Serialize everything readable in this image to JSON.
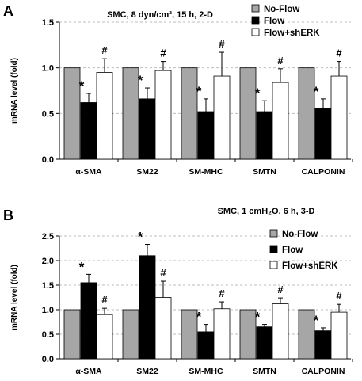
{
  "chart_data": [
    {
      "panel": "A",
      "type": "bar",
      "title": "SMC, 8 dyn/cm², 15 h, 2-D",
      "ylabel": "mRNA level (fold)",
      "xlabel": "",
      "ylim": [
        0,
        1.5
      ],
      "yticks": [
        "0.0",
        "0.5",
        "1.0",
        "1.5"
      ],
      "grid": true,
      "legend": "top-right",
      "categories": [
        "α-SMA",
        "SM22",
        "SM-MHC",
        "SMTN",
        "CALPONIN"
      ],
      "series": [
        {
          "name": "No-Flow",
          "color": "#a6a6a6",
          "values": [
            1.0,
            1.0,
            1.0,
            1.0,
            1.0
          ],
          "errors": [
            0,
            0,
            0,
            0,
            0
          ],
          "marks": [
            "",
            "",
            "",
            "",
            ""
          ]
        },
        {
          "name": "Flow",
          "color": "#000000",
          "values": [
            0.62,
            0.66,
            0.52,
            0.52,
            0.56
          ],
          "errors": [
            0.1,
            0.12,
            0.14,
            0.12,
            0.1
          ],
          "marks": [
            "*",
            "*",
            "*",
            "*",
            "*"
          ]
        },
        {
          "name": "Flow+shERK",
          "color": "#ffffff",
          "values": [
            0.95,
            0.97,
            0.91,
            0.84,
            0.91
          ],
          "errors": [
            0.15,
            0.1,
            0.26,
            0.15,
            0.16
          ],
          "marks": [
            "#",
            "#",
            "#",
            "#",
            "#"
          ]
        }
      ]
    },
    {
      "panel": "B",
      "type": "bar",
      "title": "SMC, 1 cmH₂O, 6 h, 3-D",
      "ylabel": "mRNA level (fold)",
      "xlabel": "",
      "ylim": [
        0,
        2.5
      ],
      "yticks": [
        "0.0",
        "0.5",
        "1.0",
        "1.5",
        "2.0",
        "2.5"
      ],
      "grid": true,
      "legend": "top-right",
      "categories": [
        "α-SMA",
        "SM22",
        "SM-MHC",
        "SMTN",
        "CALPONIN"
      ],
      "series": [
        {
          "name": "No-Flow",
          "color": "#a6a6a6",
          "values": [
            1.0,
            1.0,
            1.0,
            1.0,
            1.0
          ],
          "errors": [
            0,
            0,
            0,
            0,
            0
          ],
          "marks": [
            "",
            "",
            "",
            "",
            ""
          ]
        },
        {
          "name": "Flow",
          "color": "#000000",
          "values": [
            1.55,
            2.1,
            0.55,
            0.65,
            0.57
          ],
          "errors": [
            0.17,
            0.23,
            0.15,
            0.05,
            0.06
          ],
          "marks": [
            "*",
            "*",
            "*",
            "*",
            "*"
          ]
        },
        {
          "name": "Flow+shERK",
          "color": "#ffffff",
          "values": [
            0.9,
            1.25,
            1.02,
            1.12,
            0.95
          ],
          "errors": [
            0.13,
            0.33,
            0.14,
            0.12,
            0.16
          ],
          "marks": [
            "#",
            "#",
            "#",
            "#",
            "#"
          ]
        }
      ]
    }
  ]
}
